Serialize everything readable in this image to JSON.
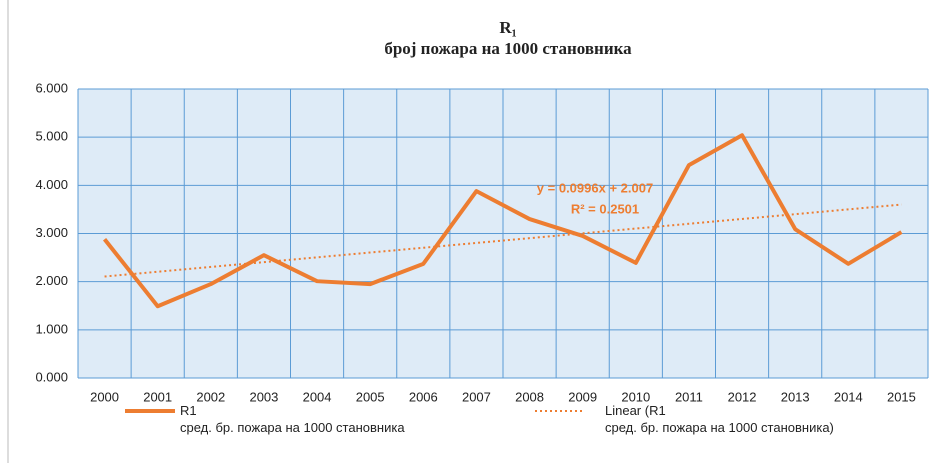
{
  "chart_data": {
    "type": "line",
    "title": "R₁",
    "subtitle": "број пожара  на 1000 становника",
    "categories": [
      "2000",
      "2001",
      "2002",
      "2003",
      "2004",
      "2005",
      "2006",
      "2007",
      "2008",
      "2009",
      "2010",
      "2011",
      "2012",
      "2013",
      "2014",
      "2015"
    ],
    "series": [
      {
        "name": "R1\nсред. бр.      пожара  на 1000 становника",
        "color": "#ed7d31",
        "style": "solid",
        "values": [
          2.88,
          1.49,
          1.95,
          2.55,
          2.01,
          1.95,
          2.37,
          3.88,
          3.3,
          2.95,
          2.39,
          4.42,
          5.04,
          3.09,
          2.37,
          3.03
        ]
      },
      {
        "name": "Linear (R1\nсред. бр.      пожара  на 1000 становника)",
        "color": "#ed7d31",
        "style": "dotted",
        "values": [
          2.107,
          2.206,
          2.306,
          2.405,
          2.505,
          2.605,
          2.704,
          2.804,
          2.903,
          3.003,
          3.103,
          3.202,
          3.302,
          3.401,
          3.501,
          3.601
        ]
      }
    ],
    "annotations": [
      "y = 0.0996x + 2.007",
      "R² = 0.2501"
    ],
    "ylim": [
      0,
      6
    ],
    "yticks": [
      {
        "value": 0,
        "label": "0.000"
      },
      {
        "value": 1,
        "label": "1.000"
      },
      {
        "value": 2,
        "label": "2.000"
      },
      {
        "value": 3,
        "label": "3.000"
      },
      {
        "value": 4,
        "label": "4.000"
      },
      {
        "value": 5,
        "label": "5.000"
      },
      {
        "value": 6,
        "label": "6.000"
      }
    ],
    "grid": true,
    "legend": "bottom"
  }
}
